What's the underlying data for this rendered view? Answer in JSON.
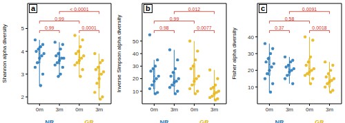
{
  "chart_data": [
    {
      "type": "box",
      "title": "a",
      "y_label": "Shannon alpha diversity",
      "categories": [
        "0m",
        "3m"
      ],
      "ylim": [
        1.7,
        6.1
      ],
      "yticks": [
        2,
        3,
        4,
        5
      ],
      "series": [
        {
          "name": "NR",
          "color": "#2b7bba",
          "boxes": [
            {
              "min": 2.5,
              "q1": 3.5,
              "median": 3.9,
              "q3": 4.2,
              "max": 4.5
            },
            {
              "min": 2.9,
              "q1": 3.45,
              "median": 3.7,
              "q3": 3.95,
              "max": 4.4
            }
          ],
          "points": [
            [
              4.5,
              4.3,
              4.2,
              4.1,
              4.0,
              3.9,
              3.8,
              3.7,
              3.5,
              3.3,
              3.0,
              2.5
            ],
            [
              4.4,
              4.3,
              4.1,
              3.9,
              3.8,
              3.7,
              3.7,
              3.6,
              3.5,
              3.4,
              3.3,
              3.0,
              2.9
            ]
          ]
        },
        {
          "name": "GR",
          "color": "#e8b71a",
          "boxes": [
            {
              "min": 2.9,
              "q1": 3.45,
              "median": 3.75,
              "q3": 4.05,
              "max": 4.7
            },
            {
              "min": 1.9,
              "q1": 2.4,
              "median": 3.0,
              "q3": 3.35,
              "max": 3.9
            }
          ],
          "points": [
            [
              4.7,
              4.5,
              4.2,
              4.0,
              3.9,
              3.8,
              3.7,
              3.6,
              3.5,
              3.4,
              3.2,
              2.9
            ],
            [
              3.9,
              3.6,
              3.5,
              3.3,
              3.2,
              3.1,
              3.0,
              2.8,
              2.6,
              2.2,
              2.0,
              1.9
            ]
          ]
        }
      ],
      "comparisons": [
        {
          "a": [
            0,
            0
          ],
          "b": [
            0,
            1
          ],
          "label": "0.99"
        },
        {
          "a": [
            1,
            0
          ],
          "b": [
            1,
            1
          ],
          "label": "0.0001"
        },
        {
          "a": [
            0,
            0
          ],
          "b": [
            1,
            0
          ],
          "label": "0.99"
        },
        {
          "a": [
            0,
            1
          ],
          "b": [
            1,
            1
          ],
          "label": "< 0.0001"
        }
      ]
    },
    {
      "type": "box",
      "title": "b",
      "y_label": "Inverse Simpson alpha diversity",
      "categories": [
        "0m",
        "3m"
      ],
      "ylim": [
        0,
        80
      ],
      "yticks": [
        10,
        20,
        30,
        40,
        50
      ],
      "series": [
        {
          "name": "NR",
          "color": "#2b7bba",
          "boxes": [
            {
              "min": 8,
              "q1": 12,
              "median": 22,
              "q3": 28,
              "max": 35
            },
            {
              "min": 8,
              "q1": 14,
              "median": 19,
              "q3": 25,
              "max": 43
            }
          ],
          "points": [
            [
              55,
              35,
              30,
              28,
              26,
              22,
              20,
              18,
              15,
              12,
              9,
              8
            ],
            [
              43,
              35,
              28,
              25,
              22,
              20,
              18,
              17,
              15,
              13,
              10,
              8
            ]
          ]
        },
        {
          "name": "GR",
          "color": "#e8b71a",
          "boxes": [
            {
              "min": 8,
              "q1": 15,
              "median": 20,
              "q3": 32,
              "max": 50
            },
            {
              "min": 3,
              "q1": 6,
              "median": 10,
              "q3": 14,
              "max": 27
            }
          ],
          "points": [
            [
              50,
              42,
              35,
              30,
              28,
              22,
              20,
              18,
              15,
              12,
              10,
              8
            ],
            [
              27,
              20,
              15,
              13,
              12,
              10,
              9,
              8,
              6,
              5,
              4,
              3
            ]
          ]
        }
      ],
      "comparisons": [
        {
          "a": [
            0,
            0
          ],
          "b": [
            0,
            1
          ],
          "label": "0.98"
        },
        {
          "a": [
            1,
            0
          ],
          "b": [
            1,
            1
          ],
          "label": "0.0077"
        },
        {
          "a": [
            0,
            0
          ],
          "b": [
            1,
            0
          ],
          "label": "0.99"
        },
        {
          "a": [
            0,
            1
          ],
          "b": [
            1,
            1
          ],
          "label": "0.012"
        }
      ]
    },
    {
      "type": "box",
      "title": "c",
      "y_label": "Fisher alpha diversity",
      "categories": [
        "0m",
        "3m"
      ],
      "ylim": [
        0,
        60
      ],
      "yticks": [
        10,
        20,
        30,
        40
      ],
      "series": [
        {
          "name": "NR",
          "color": "#2b7bba",
          "boxes": [
            {
              "min": 7,
              "q1": 17,
              "median": 23.5,
              "q3": 28,
              "max": 36
            },
            {
              "min": 12,
              "q1": 17,
              "median": 20.5,
              "q3": 23.5,
              "max": 28
            }
          ],
          "points": [
            [
              36,
              33,
              30,
              27,
              25,
              24,
              22,
              20,
              18,
              15,
              12,
              7
            ],
            [
              28,
              26,
              25,
              23,
              22,
              21,
              20,
              19,
              17,
              15,
              12
            ]
          ]
        },
        {
          "name": "GR",
          "color": "#e8b71a",
          "boxes": [
            {
              "min": 12,
              "q1": 17,
              "median": 21,
              "q3": 27,
              "max": 40
            },
            {
              "min": 7,
              "q1": 10,
              "median": 14,
              "q3": 17,
              "max": 25
            }
          ],
          "points": [
            [
              40,
              38,
              28,
              25,
              23,
              21,
              20,
              19,
              18,
              17,
              15,
              12
            ],
            [
              25,
              23,
              20,
              18,
              16,
              15,
              14,
              13,
              12,
              10,
              8,
              7
            ]
          ]
        }
      ],
      "comparisons": [
        {
          "a": [
            0,
            0
          ],
          "b": [
            0,
            1
          ],
          "label": "0.37"
        },
        {
          "a": [
            1,
            0
          ],
          "b": [
            1,
            1
          ],
          "label": "0.0018"
        },
        {
          "a": [
            0,
            0
          ],
          "b": [
            1,
            0
          ],
          "label": "0.58"
        },
        {
          "a": [
            0,
            1
          ],
          "b": [
            1,
            1
          ],
          "label": "0.0091"
        }
      ]
    }
  ]
}
